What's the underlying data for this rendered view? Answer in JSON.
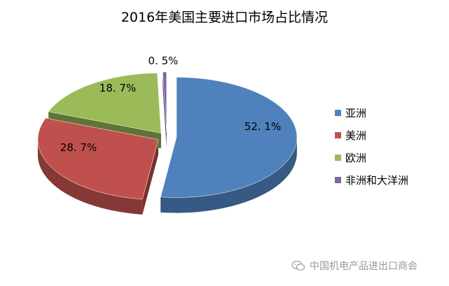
{
  "chart_data": {
    "type": "pie",
    "title": "2016年美国主要进口市场占比情况",
    "categories": [
      "亚洲",
      "美洲",
      "欧洲",
      "非洲和大洋洲"
    ],
    "values": [
      52.1,
      28.7,
      18.7,
      0.5
    ],
    "labels": [
      "52. 1%",
      "28. 7%",
      "18. 7%",
      "0. 5%"
    ],
    "colors": [
      "#4F81BD",
      "#C0504D",
      "#9BBB59",
      "#8064A2"
    ],
    "exploded": true,
    "three_d": true,
    "legend": "right"
  },
  "watermark": {
    "text": "中国机电产品进出口商会",
    "icon": "wechat-icon"
  }
}
